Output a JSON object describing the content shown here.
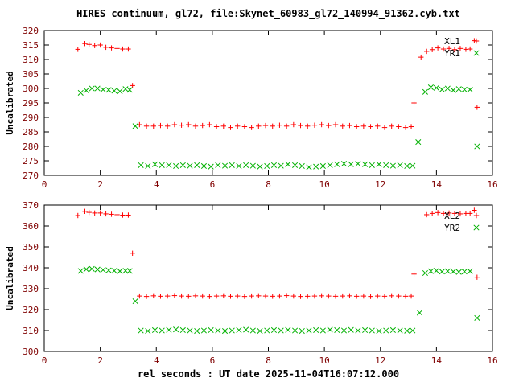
{
  "title": "HIRES continuum, gl72, file:Skynet_60983_gl72_140994_91362.cyb.txt",
  "xlabel": "rel seconds : UT date 2025-11-04T16:07:12.000",
  "colors": {
    "text": "#7f0000",
    "axis": "#000000",
    "legend_text": "#000000",
    "red": "#ff0000",
    "green": "#00b000"
  },
  "chart_data": [
    {
      "type": "scatter",
      "ylabel": "Uncalibrated",
      "xlim": [
        0,
        16
      ],
      "ylim": [
        270,
        320
      ],
      "xticks": [
        0,
        2,
        4,
        6,
        8,
        10,
        12,
        14,
        16
      ],
      "yticks": [
        270,
        275,
        280,
        285,
        290,
        295,
        300,
        305,
        310,
        315,
        320
      ],
      "grid": false,
      "legend_position": "top-right",
      "series": [
        {
          "name": "XL1",
          "marker": "plus",
          "color": "#ff0000",
          "points": [
            [
              1.2,
              313.5
            ],
            [
              1.45,
              315.5
            ],
            [
              1.6,
              315.2
            ],
            [
              1.8,
              314.8
            ],
            [
              2.0,
              315.0
            ],
            [
              2.2,
              314.2
            ],
            [
              2.4,
              314.0
            ],
            [
              2.6,
              313.8
            ],
            [
              2.8,
              313.6
            ],
            [
              3.0,
              313.6
            ],
            [
              3.15,
              301.0
            ],
            [
              3.4,
              287.5
            ],
            [
              3.65,
              287.0
            ],
            [
              3.9,
              287.0
            ],
            [
              4.15,
              287.2
            ],
            [
              4.4,
              287.0
            ],
            [
              4.65,
              287.5
            ],
            [
              4.9,
              287.3
            ],
            [
              5.15,
              287.5
            ],
            [
              5.4,
              287.0
            ],
            [
              5.65,
              287.2
            ],
            [
              5.9,
              287.5
            ],
            [
              6.15,
              286.8
            ],
            [
              6.4,
              287.0
            ],
            [
              6.65,
              286.5
            ],
            [
              6.9,
              287.0
            ],
            [
              7.15,
              286.8
            ],
            [
              7.4,
              286.5
            ],
            [
              7.65,
              287.0
            ],
            [
              7.9,
              287.2
            ],
            [
              8.15,
              287.0
            ],
            [
              8.4,
              287.3
            ],
            [
              8.65,
              287.0
            ],
            [
              8.9,
              287.5
            ],
            [
              9.15,
              287.2
            ],
            [
              9.4,
              287.0
            ],
            [
              9.65,
              287.3
            ],
            [
              9.9,
              287.5
            ],
            [
              10.15,
              287.2
            ],
            [
              10.4,
              287.5
            ],
            [
              10.65,
              287.0
            ],
            [
              10.9,
              287.2
            ],
            [
              11.15,
              286.8
            ],
            [
              11.4,
              287.0
            ],
            [
              11.65,
              286.8
            ],
            [
              11.9,
              287.0
            ],
            [
              12.15,
              286.5
            ],
            [
              12.4,
              287.0
            ],
            [
              12.65,
              286.8
            ],
            [
              12.9,
              286.5
            ],
            [
              13.1,
              286.8
            ],
            [
              13.2,
              295.0
            ],
            [
              13.45,
              310.8
            ],
            [
              13.65,
              312.8
            ],
            [
              13.85,
              313.4
            ],
            [
              14.05,
              314.0
            ],
            [
              14.25,
              313.6
            ],
            [
              14.45,
              313.8
            ],
            [
              14.65,
              313.4
            ],
            [
              14.85,
              313.8
            ],
            [
              15.05,
              313.5
            ],
            [
              15.2,
              313.6
            ],
            [
              15.35,
              316.5
            ],
            [
              15.45,
              293.5
            ]
          ]
        },
        {
          "name": "YR1",
          "marker": "cross",
          "color": "#00b000",
          "points": [
            [
              1.3,
              298.5
            ],
            [
              1.5,
              299.3
            ],
            [
              1.7,
              300.0
            ],
            [
              1.9,
              300.0
            ],
            [
              2.1,
              299.6
            ],
            [
              2.3,
              299.5
            ],
            [
              2.5,
              299.2
            ],
            [
              2.7,
              299.0
            ],
            [
              2.9,
              299.8
            ],
            [
              3.05,
              299.5
            ],
            [
              3.25,
              287.0
            ],
            [
              3.45,
              273.5
            ],
            [
              3.7,
              273.2
            ],
            [
              3.95,
              273.8
            ],
            [
              4.2,
              273.5
            ],
            [
              4.45,
              273.5
            ],
            [
              4.7,
              273.2
            ],
            [
              4.95,
              273.5
            ],
            [
              5.2,
              273.3
            ],
            [
              5.45,
              273.5
            ],
            [
              5.7,
              273.2
            ],
            [
              5.95,
              273.0
            ],
            [
              6.2,
              273.5
            ],
            [
              6.45,
              273.3
            ],
            [
              6.7,
              273.5
            ],
            [
              6.95,
              273.2
            ],
            [
              7.2,
              273.5
            ],
            [
              7.45,
              273.3
            ],
            [
              7.7,
              273.0
            ],
            [
              7.95,
              273.2
            ],
            [
              8.2,
              273.5
            ],
            [
              8.45,
              273.3
            ],
            [
              8.7,
              273.8
            ],
            [
              8.95,
              273.5
            ],
            [
              9.2,
              273.2
            ],
            [
              9.45,
              272.8
            ],
            [
              9.7,
              273.0
            ],
            [
              9.95,
              273.2
            ],
            [
              10.2,
              273.5
            ],
            [
              10.45,
              273.8
            ],
            [
              10.7,
              274.0
            ],
            [
              10.95,
              273.8
            ],
            [
              11.2,
              274.0
            ],
            [
              11.45,
              273.8
            ],
            [
              11.7,
              273.5
            ],
            [
              11.95,
              273.8
            ],
            [
              12.2,
              273.5
            ],
            [
              12.45,
              273.3
            ],
            [
              12.7,
              273.5
            ],
            [
              12.95,
              273.2
            ],
            [
              13.15,
              273.3
            ],
            [
              13.35,
              281.5
            ],
            [
              13.6,
              298.8
            ],
            [
              13.8,
              300.4
            ],
            [
              14.0,
              300.2
            ],
            [
              14.2,
              299.6
            ],
            [
              14.4,
              300.0
            ],
            [
              14.6,
              299.4
            ],
            [
              14.8,
              299.8
            ],
            [
              15.0,
              299.6
            ],
            [
              15.2,
              299.6
            ],
            [
              15.45,
              280.0
            ]
          ]
        }
      ]
    },
    {
      "type": "scatter",
      "ylabel": "Uncalibrated",
      "xlim": [
        0,
        16
      ],
      "ylim": [
        300,
        370
      ],
      "xticks": [
        0,
        2,
        4,
        6,
        8,
        10,
        12,
        14,
        16
      ],
      "yticks": [
        300,
        310,
        320,
        330,
        340,
        350,
        360,
        370
      ],
      "grid": false,
      "legend_position": "top-right",
      "series": [
        {
          "name": "XL2",
          "marker": "plus",
          "color": "#ff0000",
          "points": [
            [
              1.2,
              365.0
            ],
            [
              1.45,
              367.0
            ],
            [
              1.6,
              366.5
            ],
            [
              1.8,
              366.2
            ],
            [
              2.0,
              366.2
            ],
            [
              2.2,
              365.8
            ],
            [
              2.4,
              365.6
            ],
            [
              2.6,
              365.4
            ],
            [
              2.8,
              365.2
            ],
            [
              3.0,
              365.2
            ],
            [
              3.15,
              347.0
            ],
            [
              3.4,
              326.5
            ],
            [
              3.65,
              326.3
            ],
            [
              3.9,
              326.6
            ],
            [
              4.15,
              326.4
            ],
            [
              4.4,
              326.5
            ],
            [
              4.65,
              326.7
            ],
            [
              4.9,
              326.5
            ],
            [
              5.15,
              326.4
            ],
            [
              5.4,
              326.6
            ],
            [
              5.65,
              326.5
            ],
            [
              5.9,
              326.3
            ],
            [
              6.15,
              326.5
            ],
            [
              6.4,
              326.6
            ],
            [
              6.65,
              326.4
            ],
            [
              6.9,
              326.5
            ],
            [
              7.15,
              326.3
            ],
            [
              7.4,
              326.5
            ],
            [
              7.65,
              326.6
            ],
            [
              7.9,
              326.5
            ],
            [
              8.15,
              326.4
            ],
            [
              8.4,
              326.5
            ],
            [
              8.65,
              326.7
            ],
            [
              8.9,
              326.5
            ],
            [
              9.15,
              326.3
            ],
            [
              9.4,
              326.4
            ],
            [
              9.65,
              326.5
            ],
            [
              9.9,
              326.6
            ],
            [
              10.15,
              326.5
            ],
            [
              10.4,
              326.4
            ],
            [
              10.65,
              326.5
            ],
            [
              10.9,
              326.6
            ],
            [
              11.15,
              326.4
            ],
            [
              11.4,
              326.5
            ],
            [
              11.65,
              326.3
            ],
            [
              11.9,
              326.5
            ],
            [
              12.15,
              326.4
            ],
            [
              12.4,
              326.6
            ],
            [
              12.65,
              326.5
            ],
            [
              12.9,
              326.4
            ],
            [
              13.1,
              326.5
            ],
            [
              13.2,
              337.0
            ],
            [
              13.65,
              365.4
            ],
            [
              13.85,
              366.0
            ],
            [
              14.05,
              366.4
            ],
            [
              14.25,
              366.0
            ],
            [
              14.45,
              366.2
            ],
            [
              14.65,
              366.0
            ],
            [
              14.85,
              365.8
            ],
            [
              15.05,
              366.0
            ],
            [
              15.2,
              366.0
            ],
            [
              15.35,
              367.5
            ],
            [
              15.45,
              335.5
            ]
          ]
        },
        {
          "name": "YR2",
          "marker": "cross",
          "color": "#00b000",
          "points": [
            [
              1.3,
              338.5
            ],
            [
              1.5,
              339.3
            ],
            [
              1.7,
              339.5
            ],
            [
              1.9,
              339.2
            ],
            [
              2.1,
              339.0
            ],
            [
              2.3,
              338.8
            ],
            [
              2.5,
              338.6
            ],
            [
              2.7,
              338.4
            ],
            [
              2.9,
              338.6
            ],
            [
              3.05,
              338.5
            ],
            [
              3.25,
              324.0
            ],
            [
              3.45,
              310.0
            ],
            [
              3.7,
              309.8
            ],
            [
              3.95,
              310.2
            ],
            [
              4.2,
              310.0
            ],
            [
              4.45,
              310.3
            ],
            [
              4.7,
              310.5
            ],
            [
              4.95,
              310.2
            ],
            [
              5.2,
              310.0
            ],
            [
              5.45,
              309.8
            ],
            [
              5.7,
              310.0
            ],
            [
              5.95,
              310.2
            ],
            [
              6.2,
              310.0
            ],
            [
              6.45,
              309.8
            ],
            [
              6.7,
              310.0
            ],
            [
              6.95,
              310.2
            ],
            [
              7.2,
              310.4
            ],
            [
              7.45,
              310.0
            ],
            [
              7.7,
              309.8
            ],
            [
              7.95,
              310.0
            ],
            [
              8.2,
              310.2
            ],
            [
              8.45,
              310.0
            ],
            [
              8.7,
              310.3
            ],
            [
              8.95,
              310.0
            ],
            [
              9.2,
              309.8
            ],
            [
              9.45,
              310.0
            ],
            [
              9.7,
              310.2
            ],
            [
              9.95,
              310.0
            ],
            [
              10.2,
              310.4
            ],
            [
              10.45,
              310.2
            ],
            [
              10.7,
              310.0
            ],
            [
              10.95,
              310.3
            ],
            [
              11.2,
              310.0
            ],
            [
              11.45,
              310.2
            ],
            [
              11.7,
              310.0
            ],
            [
              11.95,
              309.8
            ],
            [
              12.2,
              310.0
            ],
            [
              12.45,
              310.2
            ],
            [
              12.7,
              310.0
            ],
            [
              12.95,
              309.9
            ],
            [
              13.15,
              310.0
            ],
            [
              13.4,
              318.5
            ],
            [
              13.6,
              337.5
            ],
            [
              13.8,
              338.4
            ],
            [
              14.0,
              338.6
            ],
            [
              14.2,
              338.2
            ],
            [
              14.4,
              338.4
            ],
            [
              14.6,
              338.2
            ],
            [
              14.8,
              338.0
            ],
            [
              15.0,
              338.2
            ],
            [
              15.2,
              338.4
            ],
            [
              15.45,
              316.0
            ]
          ]
        }
      ]
    }
  ]
}
